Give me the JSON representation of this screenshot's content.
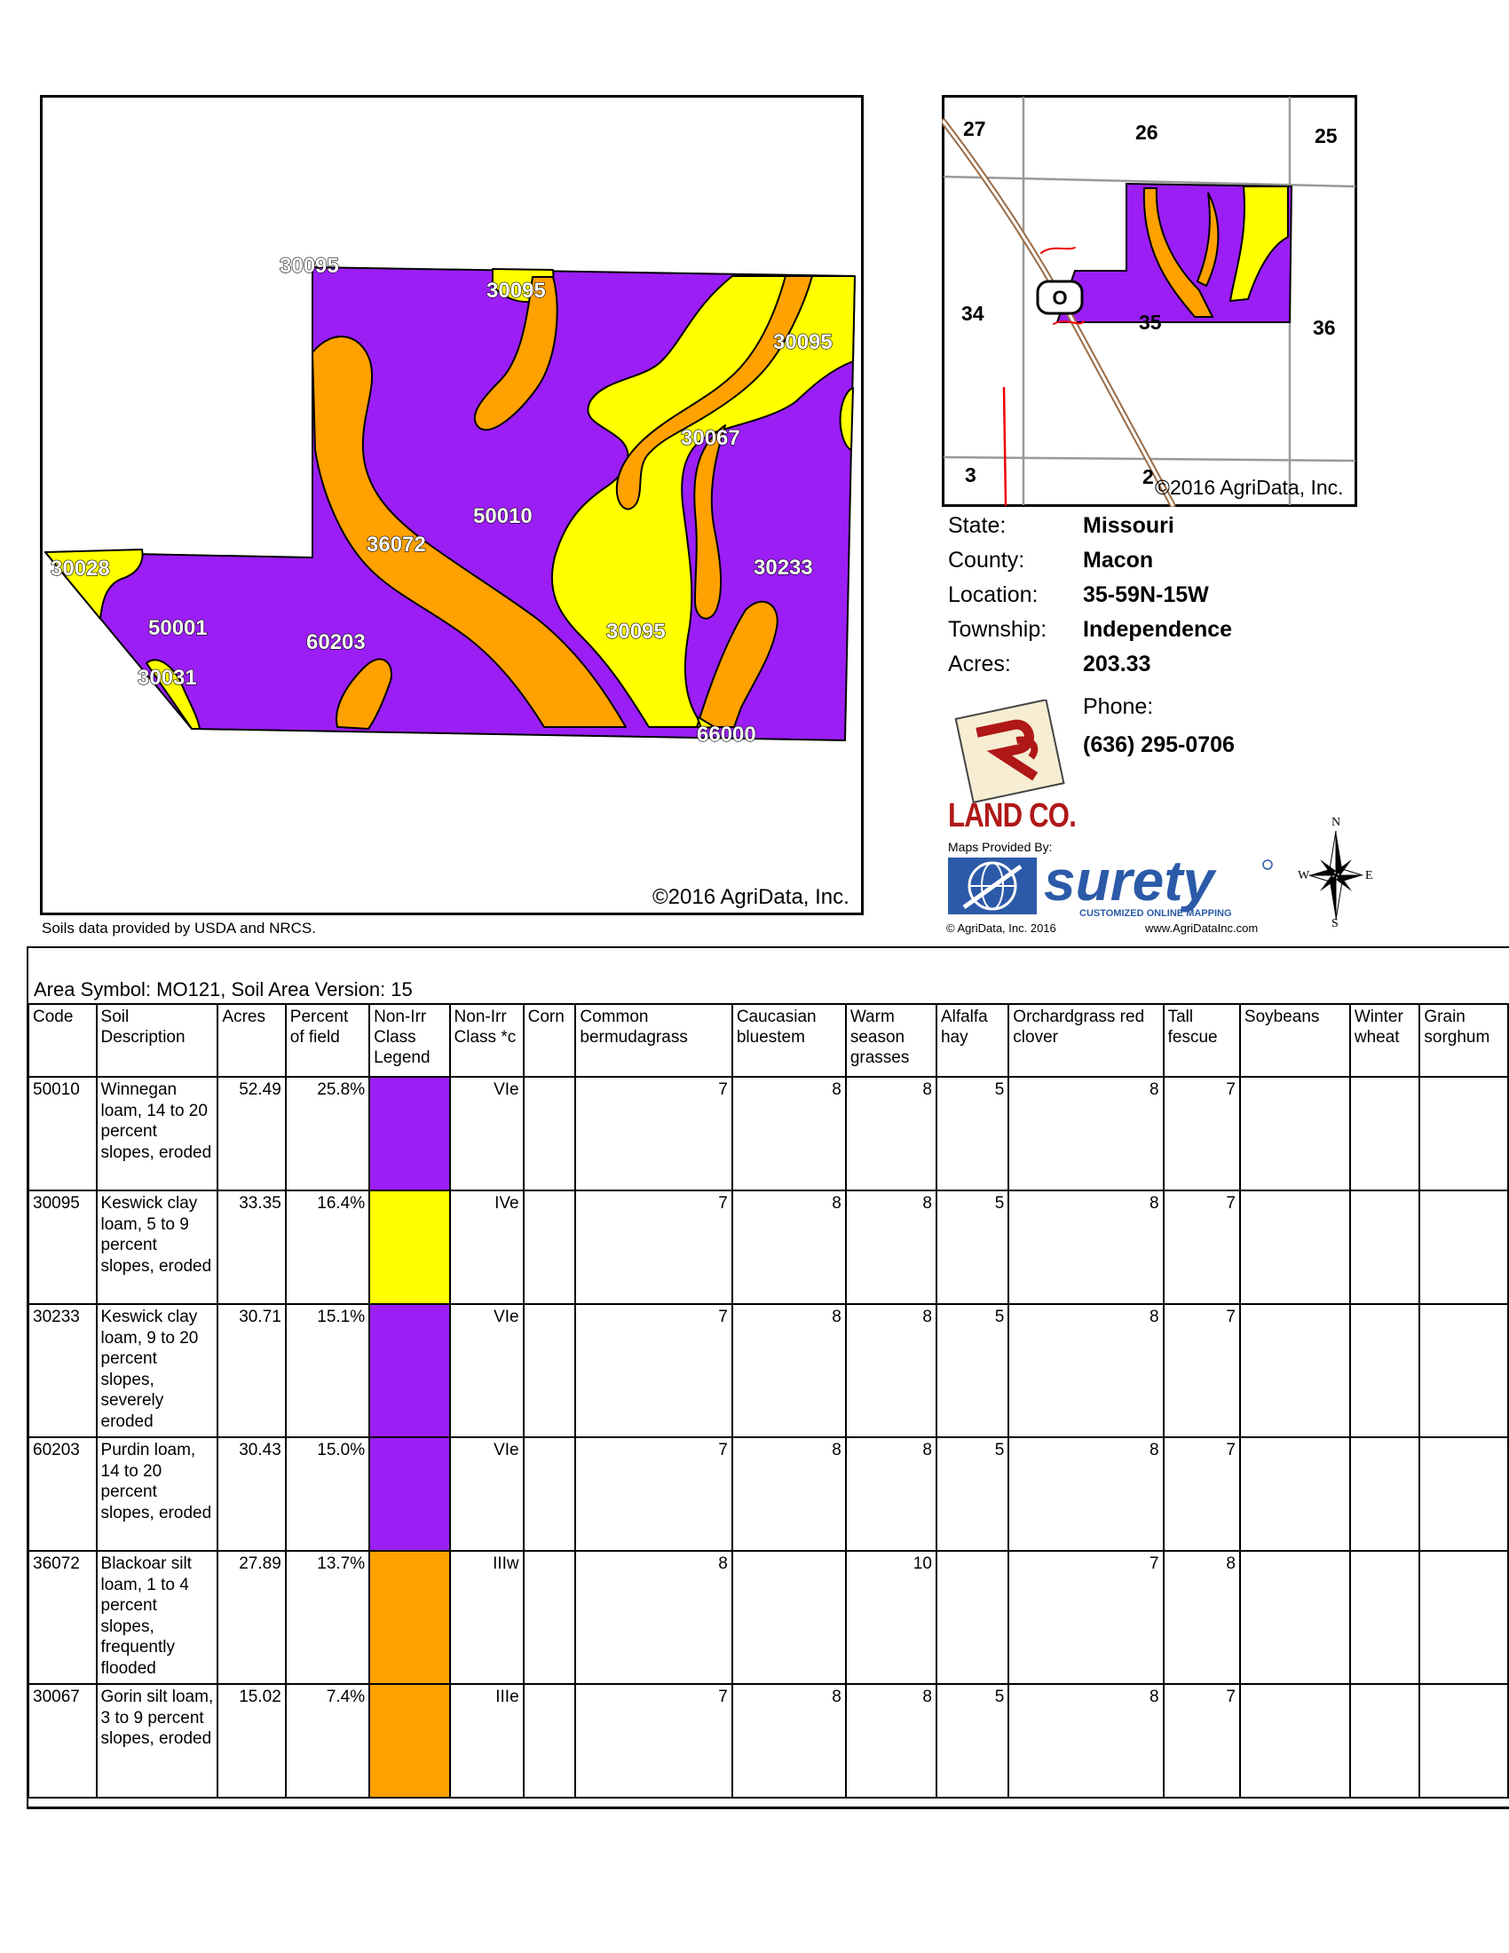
{
  "main_map": {
    "copyright": "©2016 AgriData, Inc.",
    "labels": [
      "30095",
      "30095",
      "30095",
      "30067",
      "50010",
      "36072",
      "30233",
      "30028",
      "50001",
      "60203",
      "30095",
      "30031",
      "66000"
    ],
    "colors": {
      "purple": "#9B1EF5",
      "yellow": "#FFFF00",
      "orange": "#FFA100"
    }
  },
  "soils_credit": "Soils data provided by USDA and NRCS.",
  "location_map": {
    "sections": [
      "27",
      "26",
      "25",
      "34",
      "35",
      "36",
      "3",
      "2"
    ],
    "route_marker": "O",
    "copyright": "©2016 AgriData, Inc."
  },
  "info": {
    "state_label": "State:",
    "state": "Missouri",
    "county_label": "County:",
    "county": "Macon",
    "location_label": "Location:",
    "location": "35-59N-15W",
    "township_label": "Township:",
    "township": "Independence",
    "acres_label": "Acres:",
    "acres": "203.33",
    "phone_label": "Phone:",
    "phone": "(636) 295-0706"
  },
  "branding": {
    "company": "LAND CO.",
    "maps_provided": "Maps Provided By:",
    "surety": "surety",
    "surety_tagline": "CUSTOMIZED ONLINE MAPPING",
    "agridata_small": "© AgriData, Inc. 2016",
    "agridata_url": "www.AgriDataInc.com",
    "compass": {
      "n": "N",
      "s": "S",
      "e": "E",
      "w": "W"
    }
  },
  "table": {
    "area_symbol": "Area Symbol: MO121, Soil Area Version: 15",
    "headers": {
      "code": "Code",
      "soil_desc": "Soil Description",
      "acres": "Acres",
      "percent": "Percent of field",
      "nonirr_legend": "Non-Irr Class Legend",
      "nonirr_class": "Non-Irr Class *c",
      "corn": "Corn",
      "bermuda": "Common bermudagrass",
      "bluestem": "Caucasian bluestem",
      "warm": "Warm season grasses",
      "alfalfa": "Alfalfa hay",
      "orchard": "Orchardgrass red clover",
      "fescue": "Tall fescue",
      "soybeans": "Soybeans",
      "wheat": "Winter wheat",
      "sorghum": "Grain sorghum"
    },
    "rows": [
      {
        "code": "50010",
        "desc": "Winnegan loam, 14 to 20 percent slopes, eroded",
        "acres": "52.49",
        "percent": "25.8%",
        "color": "#9B1EF5",
        "class": "VIe",
        "corn": "",
        "bermuda": "7",
        "bluestem": "8",
        "warm": "8",
        "alfalfa": "5",
        "orchard": "8",
        "fescue": "7"
      },
      {
        "code": "30095",
        "desc": "Keswick clay loam, 5 to 9 percent slopes, eroded",
        "acres": "33.35",
        "percent": "16.4%",
        "color": "#FFFF00",
        "class": "IVe",
        "corn": "",
        "bermuda": "7",
        "bluestem": "8",
        "warm": "8",
        "alfalfa": "5",
        "orchard": "8",
        "fescue": "7"
      },
      {
        "code": "30233",
        "desc": "Keswick clay loam, 9 to 20 percent slopes, severely eroded",
        "acres": "30.71",
        "percent": "15.1%",
        "color": "#9B1EF5",
        "class": "VIe",
        "corn": "",
        "bermuda": "7",
        "bluestem": "8",
        "warm": "8",
        "alfalfa": "5",
        "orchard": "8",
        "fescue": "7"
      },
      {
        "code": "60203",
        "desc": "Purdin loam, 14 to 20 percent slopes, eroded",
        "acres": "30.43",
        "percent": "15.0%",
        "color": "#9B1EF5",
        "class": "VIe",
        "corn": "",
        "bermuda": "7",
        "bluestem": "8",
        "warm": "8",
        "alfalfa": "5",
        "orchard": "8",
        "fescue": "7"
      },
      {
        "code": "36072",
        "desc": "Blackoar silt loam, 1 to 4 percent slopes, frequently flooded",
        "acres": "27.89",
        "percent": "13.7%",
        "color": "#FFA100",
        "class": "IIIw",
        "corn": "",
        "bermuda": "8",
        "bluestem": "",
        "warm": "10",
        "alfalfa": "",
        "orchard": "7",
        "fescue": "8"
      },
      {
        "code": "30067",
        "desc": "Gorin silt loam, 3 to 9 percent slopes, eroded",
        "acres": "15.02",
        "percent": "7.4%",
        "color": "#FFA100",
        "class": "IIIe",
        "corn": "",
        "bermuda": "7",
        "bluestem": "8",
        "warm": "8",
        "alfalfa": "5",
        "orchard": "8",
        "fescue": "7"
      }
    ]
  }
}
